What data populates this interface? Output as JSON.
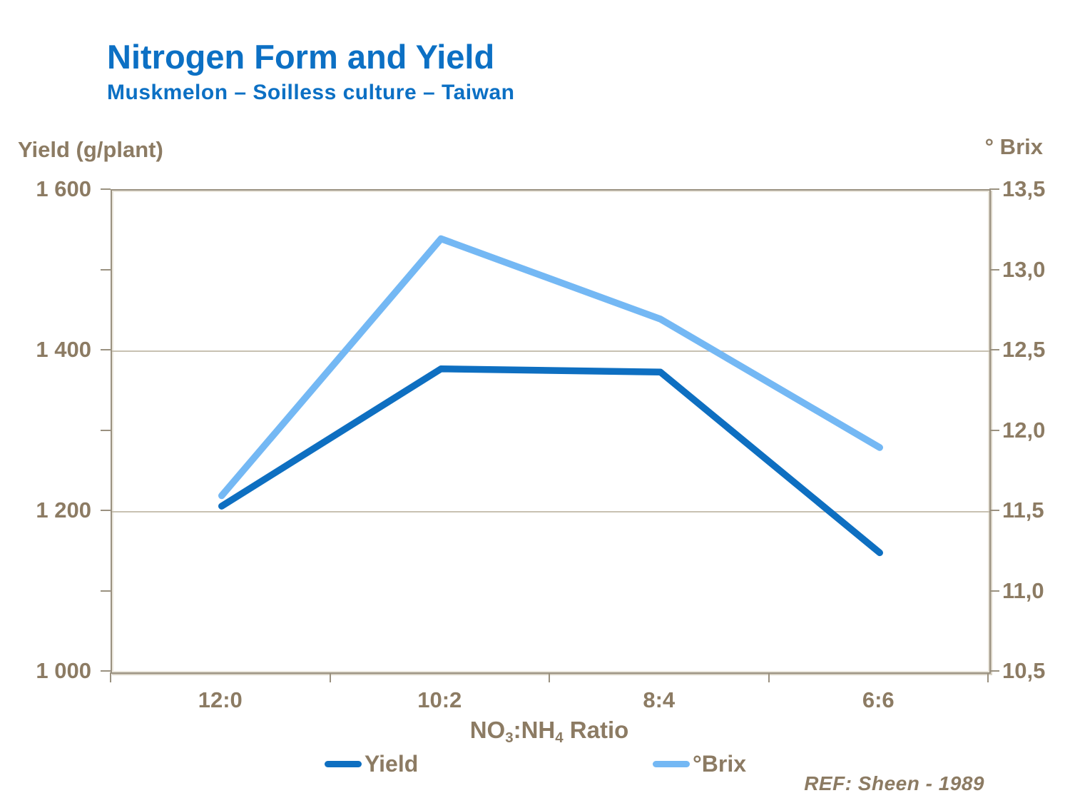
{
  "title": "Nitrogen Form and Yield",
  "subtitle": "Muskmelon – Soilless culture – Taiwan",
  "reference": "REF: Sheen - 1989",
  "colors": {
    "title_blue": "#0C70C4",
    "yield_line": "#0E6FC1",
    "brix_line": "#74B8F4",
    "axis_text": "#8C7B63",
    "gridline": "#C8C1B2",
    "frame": "#9A9180"
  },
  "chart_data": {
    "type": "line",
    "categories": [
      "12:0",
      "10:2",
      "8:4",
      "6:6"
    ],
    "series": [
      {
        "name": "Yield",
        "axis": "left",
        "color": "#0E6FC1",
        "values": [
          1207,
          1378,
          1374,
          1149
        ]
      },
      {
        "name": "°Brix",
        "axis": "right",
        "color": "#74B8F4",
        "values": [
          11.6,
          13.2,
          12.7,
          11.9
        ]
      }
    ],
    "left_axis": {
      "label": "Yield (g/plant)",
      "min": 1000,
      "max": 1600,
      "tick_labels": [
        "1 600",
        "1 400",
        "1 200",
        "1 000"
      ],
      "minor_divisions": 6
    },
    "right_axis": {
      "label": "° Brix",
      "min": 10.5,
      "max": 13.5,
      "tick_labels": [
        "13,5",
        "13,0",
        "12,5",
        "12,0",
        "11,5",
        "11,0",
        "10,5"
      ]
    },
    "x_axis": {
      "title_pre": "NO",
      "title_sub1": "3",
      "title_mid": ":NH",
      "title_sub2": "4",
      "title_post": " Ratio"
    },
    "grid": "horizontal-major",
    "legend_position": "bottom"
  }
}
